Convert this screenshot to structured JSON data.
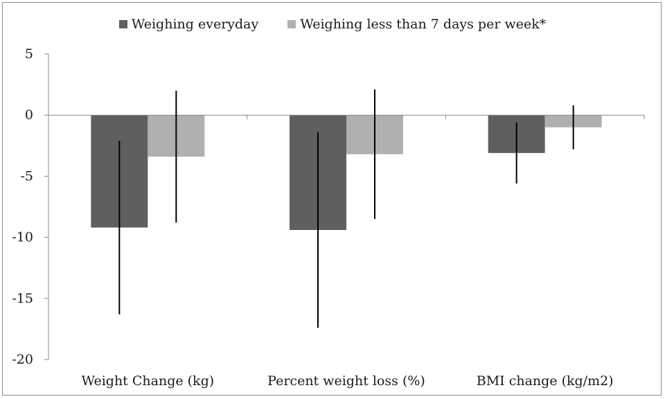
{
  "chart_data": {
    "type": "bar",
    "title": "",
    "xlabel": "",
    "ylabel": "",
    "categories": [
      "Weight Change (kg)",
      "Percent weight loss (%)",
      "BMI change (kg/m2)"
    ],
    "series": [
      {
        "name": "Weighing everyday",
        "color": "#5f5f5f",
        "values": [
          -9.2,
          -9.4,
          -3.1
        ],
        "error_low": [
          -16.3,
          -17.4,
          -5.6
        ],
        "error_high": [
          -2.1,
          -1.4,
          -0.6
        ]
      },
      {
        "name": "Weighing less than 7 days per week*",
        "color": "#b0b0b0",
        "values": [
          -3.4,
          -3.2,
          -1.0
        ],
        "error_low": [
          -8.8,
          -8.5,
          -2.8
        ],
        "error_high": [
          2.0,
          2.1,
          0.8
        ]
      }
    ],
    "ylim": [
      -20,
      5
    ],
    "yticks": [
      5,
      0,
      -5,
      -10,
      -15,
      -20
    ],
    "legend_position": "top-center",
    "grid": false
  }
}
